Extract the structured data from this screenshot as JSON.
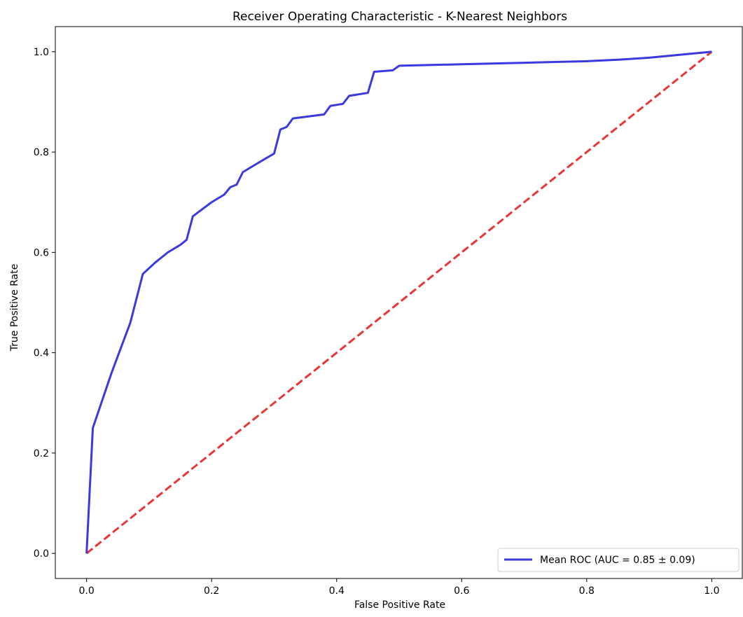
{
  "chart_data": {
    "type": "line",
    "title": "Receiver Operating Characteristic - K-Nearest Neighbors",
    "xlabel": "False Positive Rate",
    "ylabel": "True Positive Rate",
    "xlim": [
      -0.05,
      1.05
    ],
    "ylim": [
      -0.05,
      1.05
    ],
    "xticks": [
      0.0,
      0.2,
      0.4,
      0.6,
      0.8,
      1.0
    ],
    "yticks": [
      0.0,
      0.2,
      0.4,
      0.6,
      0.8,
      1.0
    ],
    "xtick_labels": [
      "0.0",
      "0.2",
      "0.4",
      "0.6",
      "0.8",
      "1.0"
    ],
    "ytick_labels": [
      "0.0",
      "0.2",
      "0.4",
      "0.6",
      "0.8",
      "1.0"
    ],
    "grid": false,
    "legend_position": "lower-right",
    "series": [
      {
        "name": "Mean ROC (AUC = 0.85 ± 0.09)",
        "color": "#3a3ae0",
        "style": "solid",
        "x": [
          0.0,
          0.01,
          0.04,
          0.07,
          0.09,
          0.11,
          0.13,
          0.15,
          0.16,
          0.17,
          0.2,
          0.22,
          0.23,
          0.24,
          0.25,
          0.27,
          0.3,
          0.31,
          0.32,
          0.33,
          0.38,
          0.39,
          0.41,
          0.42,
          0.45,
          0.46,
          0.49,
          0.5,
          0.6,
          0.7,
          0.8,
          0.85,
          0.9,
          0.95,
          1.0
        ],
        "y": [
          0.0,
          0.25,
          0.36,
          0.46,
          0.557,
          0.58,
          0.6,
          0.615,
          0.625,
          0.672,
          0.7,
          0.715,
          0.73,
          0.735,
          0.76,
          0.775,
          0.797,
          0.845,
          0.85,
          0.867,
          0.875,
          0.892,
          0.896,
          0.912,
          0.918,
          0.96,
          0.963,
          0.972,
          0.975,
          0.978,
          0.981,
          0.984,
          0.988,
          0.994,
          1.0
        ]
      },
      {
        "color": "#e83535",
        "style": "dashed",
        "x": [
          0.0,
          1.0
        ],
        "y": [
          0.0,
          1.0
        ]
      }
    ]
  }
}
